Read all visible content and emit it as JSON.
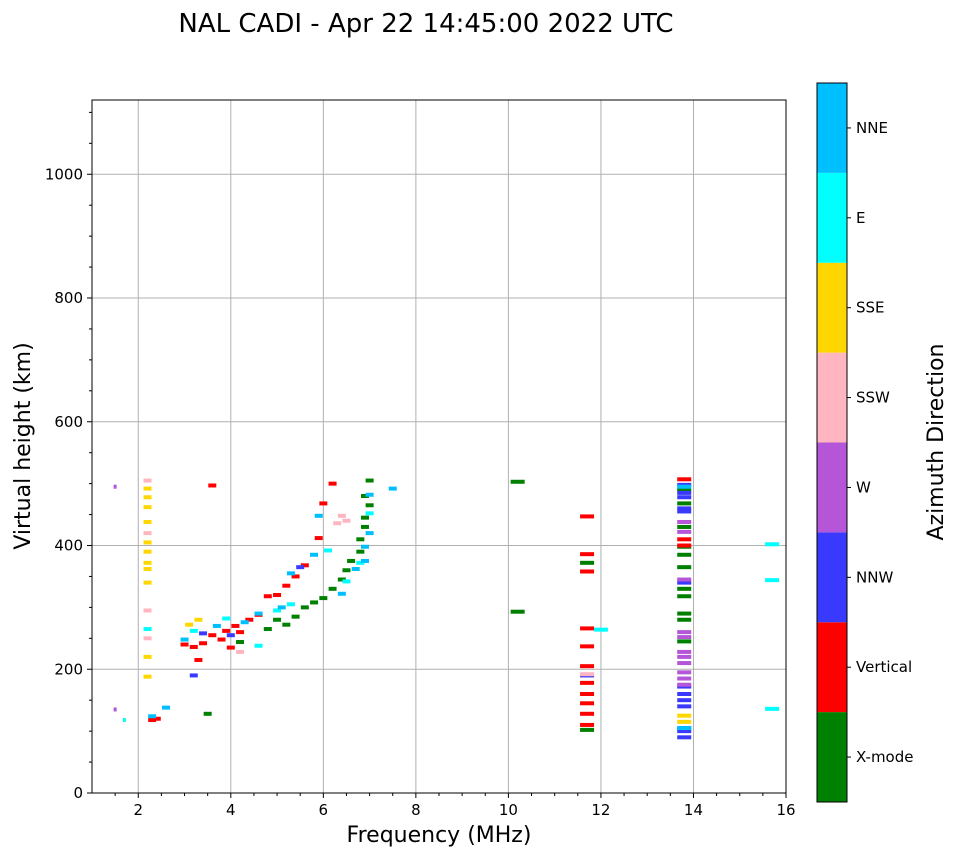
{
  "chart_data": {
    "type": "scatter",
    "title": "NAL CADI - Apr 22 14:45:00 2022 UTC",
    "xlabel": "Frequency (MHz)",
    "ylabel": "Virtual height (km)",
    "xlim": [
      1,
      16
    ],
    "ylim": [
      0,
      1120
    ],
    "xticks": [
      2,
      4,
      6,
      8,
      10,
      12,
      14,
      16
    ],
    "yticks": [
      0,
      200,
      400,
      600,
      800,
      1000
    ],
    "grid": true,
    "colorbar": {
      "label": "Azimuth Direction",
      "categories": [
        {
          "name": "X-mode",
          "color": "#008000"
        },
        {
          "name": "Vertical",
          "color": "#ff0000"
        },
        {
          "name": "NNW",
          "color": "#3a3aff"
        },
        {
          "name": "W",
          "color": "#b556d9"
        },
        {
          "name": "SSW",
          "color": "#ffb6c1"
        },
        {
          "name": "SSE",
          "color": "#ffd700"
        },
        {
          "name": "E",
          "color": "#00ffff"
        },
        {
          "name": "NNE",
          "color": "#00bfff"
        }
      ]
    },
    "series": [
      {
        "name": "X-mode",
        "points": [
          [
            3.5,
            128
          ],
          [
            4.2,
            244
          ],
          [
            4.8,
            265
          ],
          [
            5.0,
            280
          ],
          [
            5.2,
            272
          ],
          [
            5.4,
            285
          ],
          [
            5.6,
            300
          ],
          [
            5.8,
            308
          ],
          [
            6.0,
            315
          ],
          [
            6.2,
            330
          ],
          [
            6.4,
            345
          ],
          [
            6.5,
            360
          ],
          [
            6.6,
            375
          ],
          [
            6.8,
            390
          ],
          [
            6.8,
            410
          ],
          [
            6.9,
            430
          ],
          [
            6.9,
            445
          ],
          [
            7.0,
            465
          ],
          [
            6.9,
            480
          ],
          [
            7.0,
            505
          ],
          [
            10.2,
            293
          ],
          [
            10.2,
            503
          ],
          [
            11.7,
            102
          ],
          [
            11.7,
            372
          ],
          [
            13.8,
            245
          ],
          [
            13.8,
            280
          ],
          [
            13.8,
            290
          ],
          [
            13.8,
            318
          ],
          [
            13.8,
            330
          ],
          [
            13.8,
            365
          ],
          [
            13.8,
            385
          ],
          [
            13.8,
            398
          ],
          [
            13.8,
            430
          ],
          [
            13.8,
            468
          ],
          [
            13.8,
            490
          ]
        ]
      },
      {
        "name": "Vertical",
        "points": [
          [
            2.3,
            118
          ],
          [
            2.4,
            120
          ],
          [
            3.0,
            240
          ],
          [
            3.2,
            236
          ],
          [
            3.3,
            215
          ],
          [
            3.4,
            242
          ],
          [
            3.6,
            255
          ],
          [
            3.8,
            248
          ],
          [
            3.9,
            262
          ],
          [
            4.0,
            235
          ],
          [
            4.1,
            270
          ],
          [
            4.2,
            260
          ],
          [
            4.4,
            280
          ],
          [
            4.6,
            288
          ],
          [
            4.8,
            318
          ],
          [
            5.0,
            320
          ],
          [
            5.2,
            335
          ],
          [
            5.4,
            350
          ],
          [
            5.6,
            368
          ],
          [
            5.9,
            412
          ],
          [
            6.0,
            468
          ],
          [
            6.2,
            500
          ],
          [
            3.6,
            497
          ],
          [
            11.7,
            110
          ],
          [
            11.7,
            128
          ],
          [
            11.7,
            145
          ],
          [
            11.7,
            160
          ],
          [
            11.7,
            178
          ],
          [
            11.7,
            205
          ],
          [
            11.7,
            237
          ],
          [
            11.7,
            266
          ],
          [
            11.7,
            358
          ],
          [
            11.7,
            386
          ],
          [
            11.7,
            447
          ],
          [
            13.8,
            400
          ],
          [
            13.8,
            410
          ],
          [
            13.8,
            507
          ]
        ]
      },
      {
        "name": "NNW",
        "points": [
          [
            3.2,
            190
          ],
          [
            3.4,
            258
          ],
          [
            4.0,
            255
          ],
          [
            5.5,
            365
          ],
          [
            11.7,
            190
          ],
          [
            13.8,
            90
          ],
          [
            13.8,
            100
          ],
          [
            13.8,
            105
          ],
          [
            13.8,
            140
          ],
          [
            13.8,
            150
          ],
          [
            13.8,
            160
          ],
          [
            13.8,
            172
          ],
          [
            13.8,
            340
          ],
          [
            13.8,
            455
          ],
          [
            13.8,
            460
          ],
          [
            13.8,
            478
          ],
          [
            13.8,
            485
          ],
          [
            13.8,
            498
          ]
        ]
      },
      {
        "name": "W",
        "points": [
          [
            1.5,
            135
          ],
          [
            1.5,
            495
          ],
          [
            13.8,
            175
          ],
          [
            13.8,
            185
          ],
          [
            13.8,
            195
          ],
          [
            13.8,
            210
          ],
          [
            13.8,
            220
          ],
          [
            13.8,
            228
          ],
          [
            13.8,
            252
          ],
          [
            13.8,
            260
          ],
          [
            13.8,
            345
          ],
          [
            13.8,
            422
          ],
          [
            13.8,
            438
          ]
        ]
      },
      {
        "name": "SSW",
        "points": [
          [
            2.2,
            250
          ],
          [
            2.2,
            295
          ],
          [
            2.2,
            420
          ],
          [
            2.2,
            505
          ],
          [
            4.2,
            228
          ],
          [
            6.3,
            436
          ],
          [
            6.5,
            440
          ],
          [
            6.4,
            448
          ],
          [
            11.7,
            192
          ]
        ]
      },
      {
        "name": "SSE",
        "points": [
          [
            2.2,
            188
          ],
          [
            2.2,
            220
          ],
          [
            2.2,
            340
          ],
          [
            2.2,
            362
          ],
          [
            2.2,
            372
          ],
          [
            2.2,
            390
          ],
          [
            2.2,
            405
          ],
          [
            2.2,
            438
          ],
          [
            2.2,
            462
          ],
          [
            2.2,
            478
          ],
          [
            2.2,
            492
          ],
          [
            3.1,
            272
          ],
          [
            3.3,
            280
          ],
          [
            13.8,
            115
          ],
          [
            13.8,
            125
          ]
        ]
      },
      {
        "name": "E",
        "points": [
          [
            1.7,
            118
          ],
          [
            2.2,
            265
          ],
          [
            3.2,
            262
          ],
          [
            3.9,
            282
          ],
          [
            4.6,
            238
          ],
          [
            5.0,
            295
          ],
          [
            5.3,
            305
          ],
          [
            6.1,
            392
          ],
          [
            6.5,
            342
          ],
          [
            6.8,
            372
          ],
          [
            7.0,
            452
          ],
          [
            12.0,
            264
          ],
          [
            15.7,
            136
          ],
          [
            15.7,
            344
          ],
          [
            15.7,
            402
          ]
        ]
      },
      {
        "name": "NNE",
        "points": [
          [
            2.3,
            124
          ],
          [
            2.6,
            138
          ],
          [
            3.0,
            248
          ],
          [
            3.7,
            270
          ],
          [
            4.3,
            276
          ],
          [
            4.6,
            290
          ],
          [
            5.1,
            300
          ],
          [
            5.3,
            355
          ],
          [
            5.8,
            385
          ],
          [
            5.9,
            448
          ],
          [
            6.4,
            322
          ],
          [
            6.7,
            362
          ],
          [
            6.9,
            375
          ],
          [
            6.9,
            398
          ],
          [
            7.0,
            420
          ],
          [
            7.0,
            482
          ],
          [
            7.5,
            492
          ],
          [
            13.8,
            105
          ],
          [
            13.8,
            495
          ]
        ]
      }
    ]
  }
}
